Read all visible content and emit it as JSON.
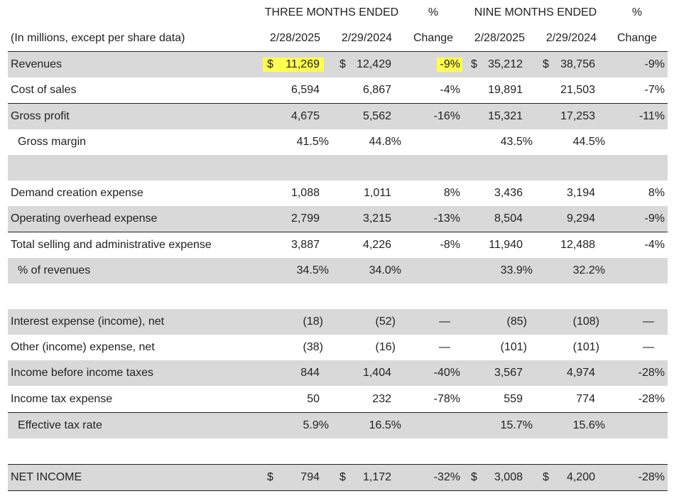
{
  "header": {
    "three_months": "THREE MONTHS ENDED",
    "nine_months": "NINE MONTHS ENDED",
    "pct1": "%",
    "pct2": "%",
    "caption": "(In millions, except per share data)",
    "date_a": "2/28/2025",
    "date_b": "2/29/2024",
    "change1": "Change",
    "date_c": "2/28/2025",
    "date_d": "2/29/2024",
    "change2": "Change"
  },
  "rows": {
    "revenues": {
      "label": "Revenues",
      "cur_a": "$",
      "v1": "11,269",
      "cur_b": "$",
      "v2": "12,429",
      "c1": "-9%",
      "cur_c": "$",
      "v3": "35,212",
      "cur_d": "$",
      "v4": "38,756",
      "c2": "-9%"
    },
    "cost_of_sales": {
      "label": "Cost of sales",
      "v1": "6,594",
      "v2": "6,867",
      "c1": "-4%",
      "v3": "19,891",
      "v4": "21,503",
      "c2": "-7%"
    },
    "gross_profit": {
      "label": "Gross profit",
      "v1": "4,675",
      "v2": "5,562",
      "c1": "-16%",
      "v3": "15,321",
      "v4": "17,253",
      "c2": "-11%"
    },
    "gross_margin": {
      "label": "Gross margin",
      "v1": "41.5%",
      "v2": "44.8%",
      "v3": "43.5%",
      "v4": "44.5%"
    },
    "demand_creation": {
      "label": "Demand creation expense",
      "v1": "1,088",
      "v2": "1,011",
      "c1": "8%",
      "v3": "3,436",
      "v4": "3,194",
      "c2": "8%"
    },
    "operating_overhead": {
      "label": "Operating overhead expense",
      "v1": "2,799",
      "v2": "3,215",
      "c1": "-13%",
      "v3": "8,504",
      "v4": "9,294",
      "c2": "-9%"
    },
    "total_sga": {
      "label": "Total selling and administrative expense",
      "v1": "3,887",
      "v2": "4,226",
      "c1": "-8%",
      "v3": "11,940",
      "v4": "12,488",
      "c2": "-4%"
    },
    "pct_revenues": {
      "label": "% of revenues",
      "v1": "34.5%",
      "v2": "34.0%",
      "v3": "33.9%",
      "v4": "32.2%"
    },
    "interest": {
      "label": "Interest expense (income), net",
      "v1": "(18)",
      "v2": "(52)",
      "c1": "—",
      "v3": "(85)",
      "v4": "(108)",
      "c2": "—"
    },
    "other": {
      "label": "Other (income) expense, net",
      "v1": "(38)",
      "v2": "(16)",
      "c1": "—",
      "v3": "(101)",
      "v4": "(101)",
      "c2": "—"
    },
    "income_before_tax": {
      "label": "Income before income taxes",
      "v1": "844",
      "v2": "1,404",
      "c1": "-40%",
      "v3": "3,567",
      "v4": "4,974",
      "c2": "-28%"
    },
    "income_tax": {
      "label": "Income tax expense",
      "v1": "50",
      "v2": "232",
      "c1": "-78%",
      "v3": "559",
      "v4": "774",
      "c2": "-28%"
    },
    "effective_tax": {
      "label": "Effective tax rate",
      "v1": "5.9%",
      "v2": "16.5%",
      "v3": "15.7%",
      "v4": "15.6%"
    },
    "net_income": {
      "label": "NET INCOME",
      "cur_a": "$",
      "v1": "794",
      "cur_b": "$",
      "v2": "1,172",
      "c1": "-32%",
      "cur_c": "$",
      "v3": "3,008",
      "cur_d": "$",
      "v4": "4,200",
      "c2": "-28%"
    }
  },
  "colors": {
    "shade": "#d9d9d9",
    "highlight": "#ffff4d",
    "text": "#222222"
  }
}
